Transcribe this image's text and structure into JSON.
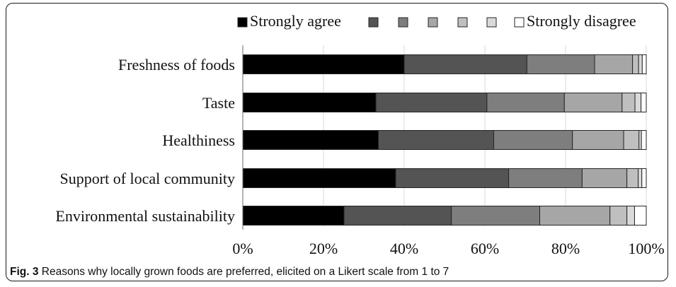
{
  "caption": {
    "label": "Fig. 3",
    "text": "Reasons why locally grown foods are preferred, elicited on a Likert scale from 1 to 7"
  },
  "chart_data": {
    "type": "bar",
    "orientation": "horizontal",
    "stacked": true,
    "categories": [
      "Freshness of foods",
      "Taste",
      "Healthiness",
      "Support of local community",
      "Environmental sustainability"
    ],
    "legend": {
      "placement": "top",
      "first_label": "Strongly agree",
      "last_label": "Strongly disagree"
    },
    "series": [
      {
        "level": 1,
        "name": "Strongly agree",
        "color": "#000000",
        "values": [
          40.0,
          33.0,
          33.6,
          37.9,
          25.1
        ]
      },
      {
        "level": 2,
        "color": "#545454",
        "values": [
          30.4,
          27.5,
          28.6,
          28.0,
          26.6
        ]
      },
      {
        "level": 3,
        "color": "#7e7e7e",
        "values": [
          16.8,
          19.2,
          19.5,
          18.2,
          21.9
        ]
      },
      {
        "level": 4,
        "color": "#a6a6a6",
        "values": [
          9.4,
          14.3,
          12.7,
          11.1,
          17.4
        ]
      },
      {
        "level": 5,
        "color": "#bfbfbf",
        "values": [
          1.5,
          3.2,
          3.8,
          2.8,
          4.2
        ]
      },
      {
        "level": 6,
        "color": "#d9d9d9",
        "values": [
          0.9,
          1.5,
          0.6,
          0.9,
          1.9
        ]
      },
      {
        "level": 7,
        "name": "Strongly disagree",
        "color": "#ffffff",
        "values": [
          1.0,
          1.3,
          1.2,
          1.1,
          2.9
        ]
      }
    ],
    "xaxis": {
      "ticks": [
        0,
        20,
        40,
        60,
        80,
        100
      ],
      "tick_labels": [
        "0%",
        "20%",
        "40%",
        "60%",
        "80%",
        "100%"
      ],
      "range": [
        0,
        100
      ]
    },
    "grid": true
  }
}
